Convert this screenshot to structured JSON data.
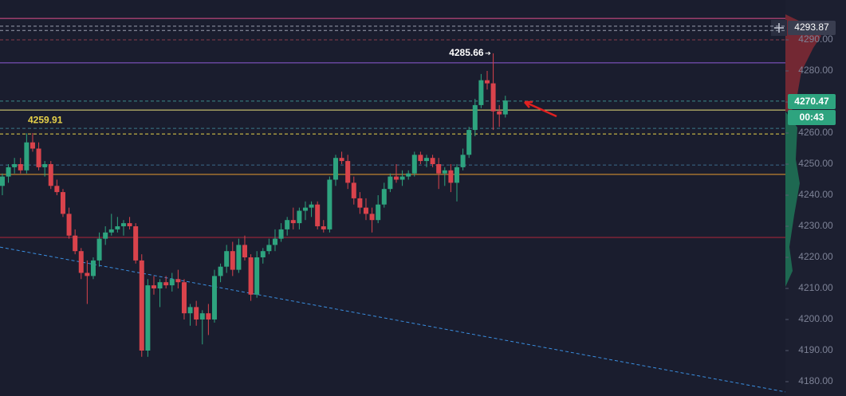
{
  "chart_data": {
    "type": "candlestick",
    "open": [
      4243,
      4246,
      4249,
      4250,
      4248,
      4257,
      4255,
      4249,
      4250,
      4243,
      4241,
      4234,
      4227,
      4222,
      4215,
      4214,
      4219,
      4226,
      4228,
      4229,
      4230,
      4231,
      4230,
      4219,
      4190,
      4211,
      4210,
      4212,
      4211,
      4213,
      4212,
      4202,
      4204,
      4200,
      4202,
      4200,
      4214,
      4217,
      4222,
      4216,
      4224,
      4220,
      4208,
      4220,
      4222,
      4224,
      4226,
      4229,
      4232,
      4231,
      4235,
      4236,
      4237,
      4230,
      4229,
      4245,
      4252,
      4251,
      4244,
      4239,
      4236,
      4234,
      4232,
      4237,
      4242,
      4246,
      4245,
      4246,
      4247,
      4253,
      4251,
      4252,
      4250,
      4247,
      4248,
      4244,
      4249,
      4253,
      4261,
      4269,
      4277,
      4276,
      4267,
      4266
    ],
    "high": [
      4247,
      4250,
      4252,
      4252,
      4259.91,
      4260,
      4257,
      4251,
      4251,
      4245,
      4242,
      4236,
      4229,
      4223,
      4219,
      4220,
      4228,
      4230,
      4234,
      4233,
      4232,
      4233,
      4231,
      4221,
      4213,
      4214,
      4213,
      4214,
      4215,
      4216,
      4213,
      4205,
      4206,
      4203,
      4205,
      4216,
      4218,
      4224,
      4225,
      4226,
      4227,
      4221,
      4222,
      4223,
      4226,
      4229,
      4231,
      4233,
      4236,
      4236,
      4238,
      4238,
      4238,
      4232,
      4246,
      4253,
      4254,
      4253,
      4246,
      4241,
      4239,
      4236,
      4240,
      4244,
      4247,
      4250,
      4248,
      4248,
      4254,
      4254,
      4253,
      4253,
      4252,
      4249,
      4250,
      4250,
      4255,
      4262,
      4271,
      4279,
      4280,
      4285.66,
      4269,
      4272
    ],
    "low": [
      4240,
      4244,
      4247,
      4247,
      4247,
      4254,
      4248,
      4246,
      4242,
      4240,
      4233,
      4226,
      4221,
      4213,
      4205,
      4213,
      4217,
      4224,
      4227,
      4228,
      4227,
      4229,
      4218,
      4188,
      4188,
      4208,
      4204,
      4210,
      4209,
      4210,
      4200,
      4198,
      4198,
      4192,
      4195,
      4199,
      4212,
      4215,
      4214,
      4215,
      4219,
      4206,
      4207,
      4218,
      4221,
      4222,
      4225,
      4227,
      4229,
      4229,
      4232,
      4233,
      4229,
      4228,
      4228,
      4243,
      4250,
      4242,
      4237,
      4234,
      4232,
      4228,
      4231,
      4236,
      4241,
      4244,
      4243,
      4245,
      4246,
      4250,
      4249,
      4249,
      4242,
      4243,
      4241,
      4238,
      4248,
      4252,
      4259,
      4268,
      4274,
      4261,
      4262,
      4265
    ],
    "close": [
      4246,
      4249,
      4250,
      4248,
      4257,
      4255,
      4249,
      4250,
      4243,
      4241,
      4234,
      4227,
      4222,
      4215,
      4214,
      4219,
      4226,
      4228,
      4229,
      4230,
      4231,
      4230,
      4219,
      4190,
      4211,
      4210,
      4212,
      4211,
      4213,
      4212,
      4202,
      4204,
      4200,
      4202,
      4200,
      4214,
      4217,
      4222,
      4216,
      4224,
      4220,
      4208,
      4220,
      4222,
      4224,
      4226,
      4229,
      4232,
      4231,
      4235,
      4236,
      4237,
      4230,
      4229,
      4245,
      4252,
      4251,
      4244,
      4239,
      4236,
      4234,
      4232,
      4237,
      4242,
      4246,
      4245,
      4246,
      4247,
      4253,
      4251,
      4252,
      4250,
      4247,
      4248,
      4244,
      4249,
      4253,
      4261,
      4269,
      4277,
      4276,
      4267,
      4266,
      4270.47
    ],
    "up_color": "#2ea47f",
    "down_color": "#d9434c",
    "xlim": [
      -0.39,
      129.21
    ],
    "ylim": [
      4175.38,
      4302.82
    ],
    "yticks": [
      {
        "value": 4180,
        "label": "4180.00"
      },
      {
        "value": 4190,
        "label": "4190.00"
      },
      {
        "value": 4200,
        "label": "4200.00"
      },
      {
        "value": 4210,
        "label": "4210.00"
      },
      {
        "value": 4220,
        "label": "4220.00"
      },
      {
        "value": 4230,
        "label": "4230.00"
      },
      {
        "value": 4240,
        "label": "4240.00"
      },
      {
        "value": 4250,
        "label": "4250.00"
      },
      {
        "value": 4260,
        "label": "4260.00"
      },
      {
        "value": 4270,
        "label": "4270.00"
      },
      {
        "value": 4280,
        "label": "4280.00"
      },
      {
        "value": 4290,
        "label": "4290.00"
      }
    ],
    "hlines": [
      {
        "value": 4296.9,
        "color": "#e0508a",
        "dash": false
      },
      {
        "value": 4294.4,
        "color": "#9aa0b0",
        "dash": true
      },
      {
        "value": 4293.0,
        "color": "#9aa0b0",
        "dash": true
      },
      {
        "value": 4290.0,
        "color": "#8a3a4a",
        "dash": true
      },
      {
        "value": 4282.6,
        "color": "#8e5bd6",
        "dash": false
      },
      {
        "value": 4270.3,
        "color": "#3a8a8a",
        "dash": true
      },
      {
        "value": 4267.4,
        "color": "#e8e07a",
        "dash": false
      },
      {
        "value": 4261.5,
        "color": "#3a7a8a",
        "dash": true
      },
      {
        "value": 4259.7,
        "color": "#e8d24a",
        "dash": true
      },
      {
        "value": 4249.7,
        "color": "#3a6a8a",
        "dash": true
      },
      {
        "value": 4246.7,
        "color": "#e89a30",
        "dash": false
      },
      {
        "value": 4226.4,
        "color": "#b0283a",
        "dash": false
      }
    ],
    "trendline": {
      "start": [
        -0.39,
        4223.3
      ],
      "end": [
        129.21,
        4176.7
      ],
      "color": "#3a8ee0"
    },
    "price_tag": 4293.87,
    "countdown": "00:43"
  }
}
